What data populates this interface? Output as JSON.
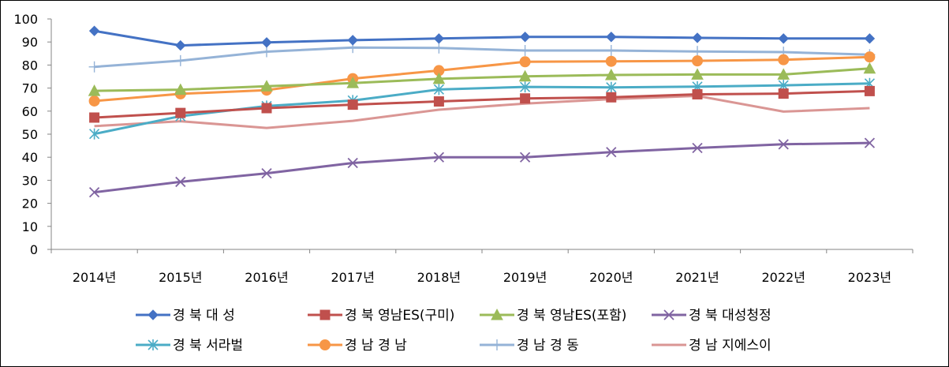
{
  "chart_data": {
    "type": "line",
    "title": "",
    "xlabel": "",
    "ylabel": "",
    "ylim": [
      0,
      100
    ],
    "ytick_step": 10,
    "grid": false,
    "legend_position": "bottom",
    "categories": [
      "2014년",
      "2015년",
      "2016년",
      "2017년",
      "2018년",
      "2019년",
      "2020년",
      "2021년",
      "2022년",
      "2023년"
    ],
    "series": [
      {
        "name": "경 북 대  성",
        "color": "#4472C4",
        "marker": "diamond",
        "values": [
          94.8,
          88.5,
          89.8,
          90.8,
          91.5,
          92.2,
          92.2,
          91.8,
          91.5,
          91.5
        ]
      },
      {
        "name": "경 북 영남ES(구미)",
        "color": "#C0504D",
        "marker": "square",
        "values": [
          57.2,
          59.2,
          61.3,
          62.8,
          64.2,
          65.5,
          66.0,
          67.3,
          67.6,
          68.7
        ]
      },
      {
        "name": "경 북 영남ES(포함)",
        "color": "#9BBB59",
        "marker": "triangle",
        "values": [
          68.8,
          69.3,
          70.8,
          72.2,
          74.0,
          75.1,
          75.7,
          75.9,
          75.9,
          78.5
        ]
      },
      {
        "name": "경 북 대성청정",
        "color": "#8064A2",
        "marker": "x",
        "values": [
          24.8,
          29.3,
          33.0,
          37.5,
          40.0,
          40.0,
          42.2,
          44.0,
          45.6,
          46.2
        ]
      },
      {
        "name": "경 북 서라벌",
        "color": "#4BACC6",
        "marker": "star",
        "values": [
          50.1,
          57.8,
          62.2,
          64.6,
          69.4,
          70.5,
          70.3,
          70.6,
          71.2,
          72.0
        ]
      },
      {
        "name": "경 남 경  남",
        "color": "#F79646",
        "marker": "circle",
        "values": [
          64.4,
          67.5,
          69.1,
          74.1,
          77.6,
          81.4,
          81.6,
          81.8,
          82.3,
          83.5
        ]
      },
      {
        "name": "경 남 경  동",
        "color": "#95B3D7",
        "marker": "plus",
        "values": [
          79.2,
          81.9,
          85.8,
          87.6,
          87.4,
          86.3,
          86.3,
          85.9,
          85.6,
          84.5
        ]
      },
      {
        "name": "경 남 지에스이",
        "color": "#DA9694",
        "marker": "none",
        "values": [
          53.5,
          55.6,
          52.7,
          55.8,
          60.6,
          63.3,
          65.2,
          66.6,
          59.8,
          61.3
        ]
      }
    ]
  }
}
